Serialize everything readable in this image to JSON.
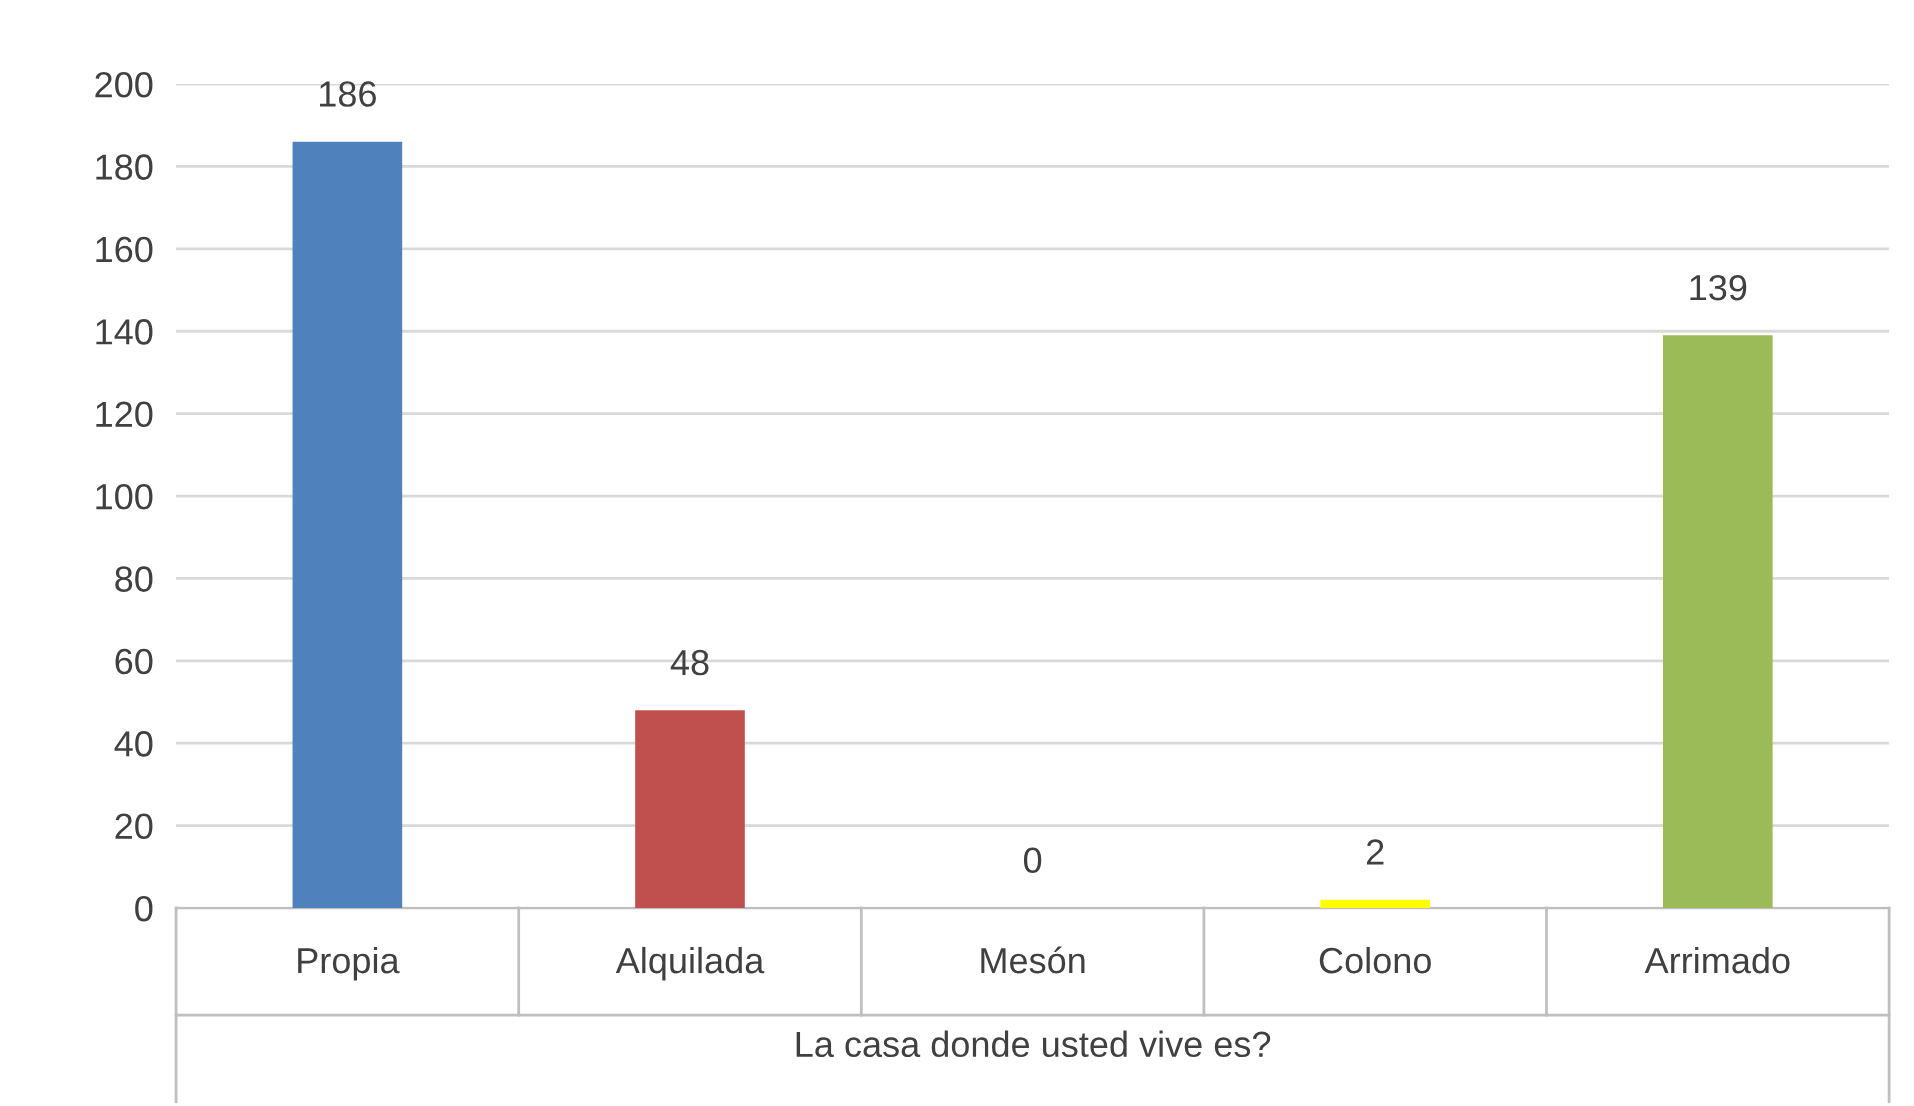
{
  "chart_data": {
    "type": "bar",
    "xlabel": "La casa donde usted vive es?",
    "categories": [
      "Propia",
      "Alquilada",
      "Mesón",
      "Colono",
      "Arrimado"
    ],
    "values": [
      186,
      48,
      0,
      2,
      139
    ],
    "colors": [
      "#4f81bd",
      "#c0504d",
      "#7f7f7f",
      "#ffff00",
      "#9bbb59"
    ],
    "ylim": [
      0,
      200
    ],
    "yticks": [
      0,
      20,
      40,
      60,
      80,
      100,
      120,
      140,
      160,
      180,
      200
    ],
    "grid": "y",
    "data_labels": true,
    "legend": false
  }
}
